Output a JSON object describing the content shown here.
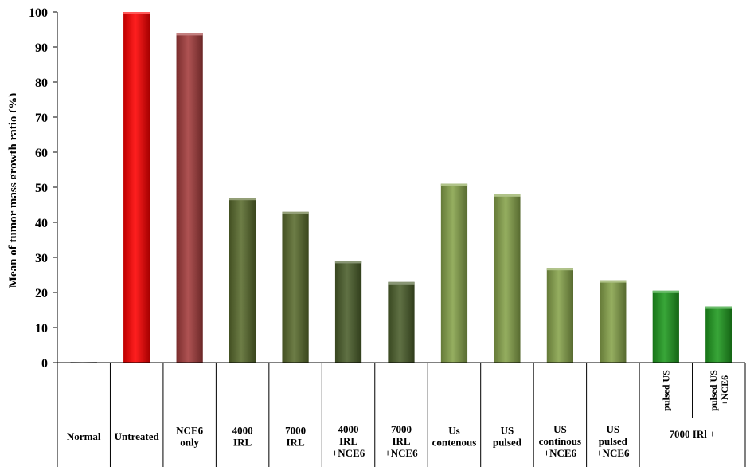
{
  "chart_data": {
    "type": "bar",
    "title": "",
    "xlabel": "",
    "ylabel": "Mean of tumor mass growth ratio (%)",
    "ylim": [
      0,
      100
    ],
    "yticks": [
      0,
      10,
      20,
      30,
      40,
      50,
      60,
      70,
      80,
      90,
      100
    ],
    "grid": false,
    "categories": [
      [
        "Normal"
      ],
      [
        "Untreated"
      ],
      [
        "NCE6",
        "only"
      ],
      [
        "4000",
        "IRL"
      ],
      [
        "7000",
        "IRL"
      ],
      [
        "4000",
        "IRL",
        "+NCE6"
      ],
      [
        "7000",
        "IRL",
        "+NCE6"
      ],
      [
        "Us",
        "contenous"
      ],
      [
        "US",
        "pulsed"
      ],
      [
        "US",
        "continous",
        "+NCE6"
      ],
      [
        "US",
        "pulsed",
        "+NCE6"
      ],
      [
        "pulsed US"
      ],
      [
        "pulsed US",
        "+NCE6"
      ]
    ],
    "group_label": "7000 IRl +",
    "values": [
      0,
      100,
      94,
      47,
      43,
      29,
      23,
      51,
      48,
      27,
      23.5,
      20.5,
      16
    ],
    "colors": [
      "#dddddd",
      "#ff0000",
      "#a43c3c",
      "#596b2d",
      "#596b2d",
      "#4a5e2a",
      "#4a5e2a",
      "#86a34a",
      "#86a34a",
      "#86a34a",
      "#86a34a",
      "#1e9a1e",
      "#1e9a1e"
    ]
  }
}
